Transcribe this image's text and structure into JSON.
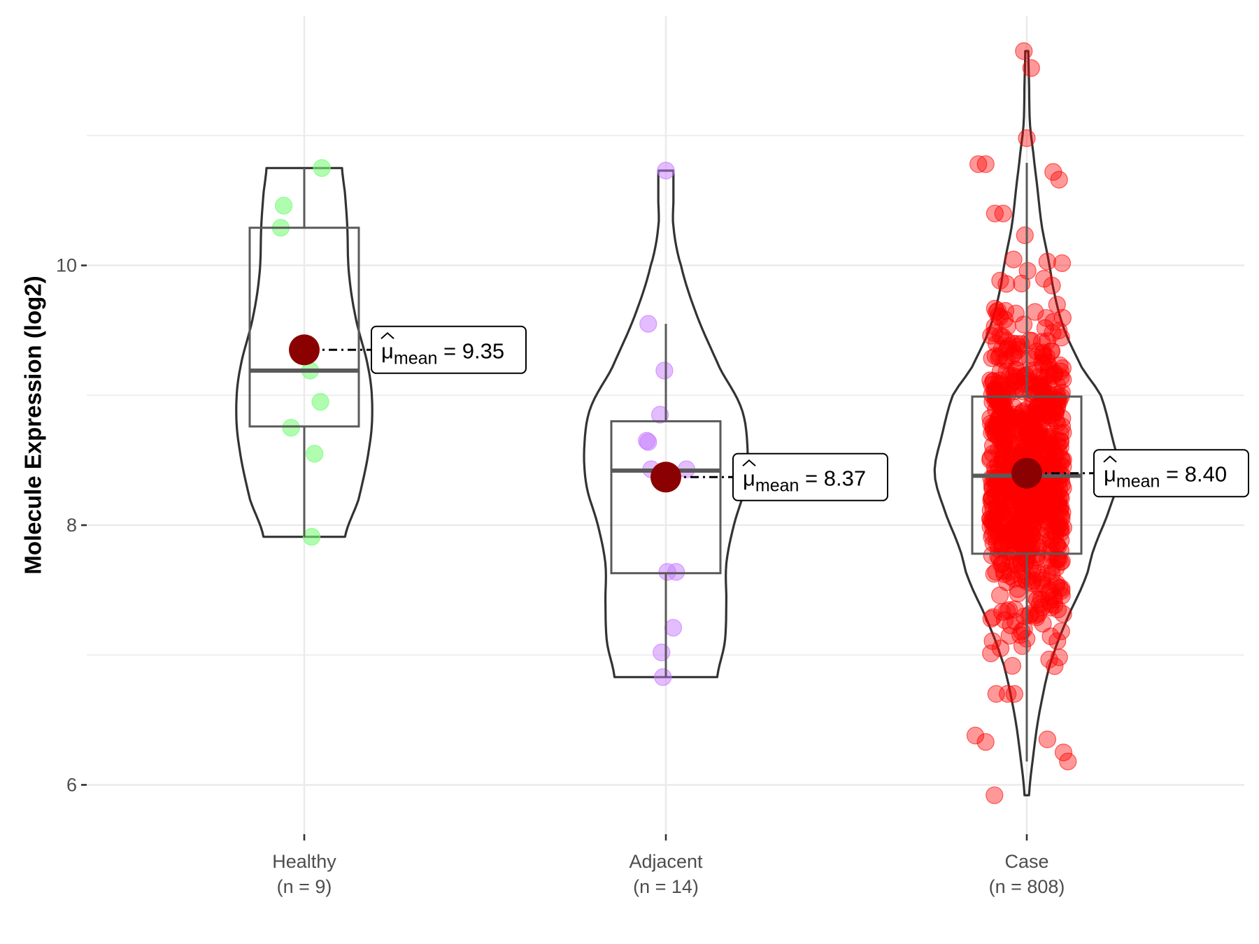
{
  "chart_data": {
    "type": "violin",
    "title": "",
    "xlabel": "",
    "ylabel": "Molecule Expression (log2)",
    "ylim": [
      5.62,
      11.92
    ],
    "yticks": [
      6,
      8,
      10
    ],
    "ytick_labels": [
      "6",
      "8",
      "10"
    ],
    "minor_gridlines": [
      7,
      9,
      11
    ],
    "grid": true,
    "legend": "none",
    "categories": [
      {
        "name": "Healthy",
        "n_label": "(n = 9)",
        "n": 9,
        "color": "#7CFC7C",
        "point_alpha": 0.6,
        "mean": 9.35,
        "mean_label": "9.35",
        "box": {
          "whisker_low": 7.91,
          "q1": 8.76,
          "median": 9.19,
          "q3": 10.29,
          "whisker_high": 10.75
        },
        "violin_profile": [
          [
            7.91,
            0.54
          ],
          [
            8.2,
            0.72
          ],
          [
            8.6,
            0.86
          ],
          [
            8.9,
            0.9
          ],
          [
            9.2,
            0.85
          ],
          [
            9.6,
            0.68
          ],
          [
            9.95,
            0.59
          ],
          [
            10.3,
            0.57
          ],
          [
            10.55,
            0.54
          ],
          [
            10.75,
            0.5
          ]
        ],
        "points": [
          [
            10.75,
            0.12
          ],
          [
            10.46,
            -0.14
          ],
          [
            10.29,
            -0.16
          ],
          [
            9.35,
            0.0
          ],
          [
            9.19,
            0.04
          ],
          [
            8.95,
            0.11
          ],
          [
            8.75,
            -0.09
          ],
          [
            8.55,
            0.07
          ],
          [
            7.91,
            0.05
          ]
        ]
      },
      {
        "name": "Adjacent",
        "n_label": "(n = 14)",
        "n": 14,
        "color": "#C77CFF",
        "point_alpha": 0.5,
        "mean": 8.37,
        "mean_label": "8.37",
        "box": {
          "whisker_low": 6.83,
          "q1": 7.63,
          "median": 8.42,
          "q3": 8.8,
          "whisker_high": 9.55
        },
        "violin_profile": [
          [
            6.83,
            0.68
          ],
          [
            7.1,
            0.78
          ],
          [
            7.4,
            0.8
          ],
          [
            7.7,
            0.8
          ],
          [
            8.0,
            0.9
          ],
          [
            8.3,
            1.05
          ],
          [
            8.6,
            1.08
          ],
          [
            8.9,
            1.0
          ],
          [
            9.2,
            0.72
          ],
          [
            9.6,
            0.42
          ],
          [
            10.0,
            0.2
          ],
          [
            10.3,
            0.1
          ],
          [
            10.5,
            0.1
          ],
          [
            10.73,
            0.1
          ]
        ],
        "points": [
          [
            10.73,
            0.0
          ],
          [
            9.55,
            -0.12
          ],
          [
            9.19,
            -0.01
          ],
          [
            8.85,
            -0.04
          ],
          [
            8.65,
            -0.13
          ],
          [
            8.64,
            -0.12
          ],
          [
            8.43,
            -0.1
          ],
          [
            8.43,
            0.14
          ],
          [
            7.64,
            0.01
          ],
          [
            7.64,
            0.07
          ],
          [
            7.21,
            0.05
          ],
          [
            7.02,
            -0.03
          ],
          [
            6.83,
            -0.02
          ],
          [
            8.37,
            0.0
          ]
        ]
      },
      {
        "name": "Case",
        "n_label": "(n = 808)",
        "n": 808,
        "color": "#FF0000",
        "point_alpha": 0.4,
        "mean": 8.4,
        "mean_label": "8.40",
        "box": {
          "whisker_low": 6.18,
          "q1": 7.78,
          "median": 8.38,
          "q3": 8.99,
          "whisker_high": 10.79
        },
        "violin_profile": [
          [
            5.92,
            0.03
          ],
          [
            6.2,
            0.08
          ],
          [
            6.5,
            0.15
          ],
          [
            6.8,
            0.25
          ],
          [
            7.0,
            0.35
          ],
          [
            7.3,
            0.55
          ],
          [
            7.6,
            0.78
          ],
          [
            7.8,
            0.88
          ],
          [
            8.1,
            1.08
          ],
          [
            8.4,
            1.22
          ],
          [
            8.7,
            1.12
          ],
          [
            9.0,
            0.98
          ],
          [
            9.2,
            0.74
          ],
          [
            9.5,
            0.5
          ],
          [
            9.8,
            0.36
          ],
          [
            10.0,
            0.3
          ],
          [
            10.3,
            0.2
          ],
          [
            10.6,
            0.14
          ],
          [
            10.9,
            0.08
          ],
          [
            11.1,
            0.04
          ],
          [
            11.4,
            0.03
          ],
          [
            11.65,
            0.02
          ]
        ],
        "points_sd": 0.85,
        "extreme_points": [
          [
            11.65,
            -0.02
          ],
          [
            11.52,
            0.03
          ],
          [
            10.98,
            0.0
          ],
          [
            10.78,
            -0.33
          ],
          [
            10.78,
            -0.28
          ],
          [
            10.72,
            0.18
          ],
          [
            10.66,
            0.22
          ],
          [
            5.92,
            -0.22
          ],
          [
            6.18,
            0.28
          ],
          [
            6.25,
            0.25
          ],
          [
            6.38,
            -0.35
          ],
          [
            6.33,
            -0.28
          ],
          [
            6.35,
            0.14
          ]
        ]
      }
    ]
  }
}
